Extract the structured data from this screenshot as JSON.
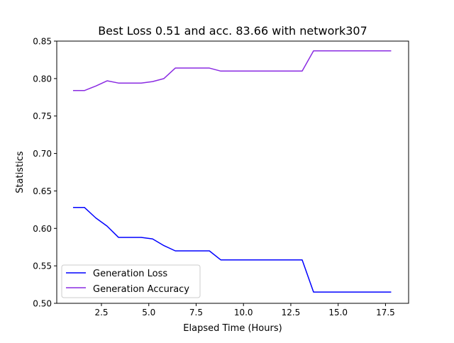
{
  "chart_data": {
    "type": "line",
    "title": "Best Loss 0.51 and acc. 83.66 with network307",
    "xlabel": "Elapsed Time (Hours)",
    "ylabel": "Statistics",
    "xlim": [
      0.14,
      18.72
    ],
    "ylim": [
      0.5,
      0.85
    ],
    "xticks": [
      2.5,
      5.0,
      7.5,
      10.0,
      12.5,
      15.0,
      17.5
    ],
    "xtick_labels": [
      "2.5",
      "5.0",
      "7.5",
      "10.0",
      "12.5",
      "15.0",
      "17.5"
    ],
    "yticks": [
      0.5,
      0.55,
      0.6,
      0.65,
      0.7,
      0.75,
      0.8,
      0.85
    ],
    "ytick_labels": [
      "0.50",
      "0.55",
      "0.60",
      "0.65",
      "0.70",
      "0.75",
      "0.80",
      "0.85"
    ],
    "grid": false,
    "legend_position": "lower-left",
    "series": [
      {
        "name": "Generation Loss",
        "color": "#0000ff",
        "x": [
          1.0,
          1.6,
          2.2,
          2.8,
          3.4,
          4.6,
          5.2,
          5.8,
          6.4,
          8.2,
          8.8,
          13.1,
          13.7,
          17.8
        ],
        "y": [
          0.628,
          0.628,
          0.614,
          0.603,
          0.588,
          0.588,
          0.586,
          0.577,
          0.57,
          0.57,
          0.558,
          0.558,
          0.515,
          0.515
        ]
      },
      {
        "name": "Generation Accuracy",
        "color": "#8a2be2",
        "x": [
          1.0,
          1.6,
          2.2,
          2.8,
          3.4,
          4.6,
          5.2,
          5.8,
          6.4,
          8.2,
          8.8,
          13.1,
          13.7,
          17.8
        ],
        "y": [
          0.784,
          0.784,
          0.79,
          0.797,
          0.794,
          0.794,
          0.796,
          0.8,
          0.814,
          0.814,
          0.81,
          0.81,
          0.837,
          0.837
        ]
      }
    ]
  }
}
